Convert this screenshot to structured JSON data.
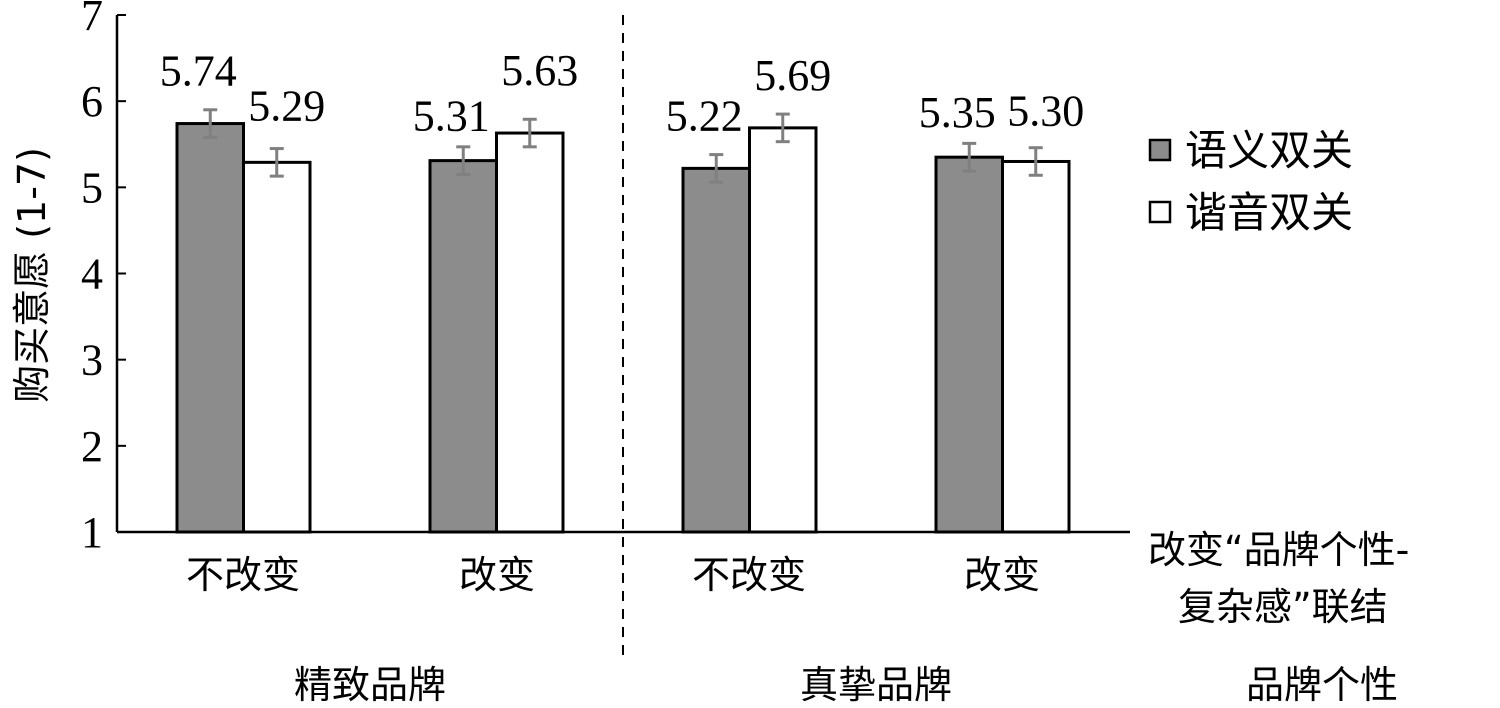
{
  "chart_data": {
    "type": "bar",
    "ylabel": "购买意愿 (1-7)",
    "ylim": [
      1,
      7
    ],
    "yticks": [
      "1",
      "2",
      "3",
      "4",
      "5",
      "6",
      "7"
    ],
    "grid": false,
    "legend_position": "right",
    "categories": [
      "不改变",
      "改变",
      "不改变",
      "改变"
    ],
    "groups": [
      {
        "label": "精致品牌",
        "categories": [
          0,
          1
        ]
      },
      {
        "label": "真挚品牌",
        "categories": [
          2,
          3
        ]
      }
    ],
    "x_factor_label_line1": "改变“品牌个性-",
    "x_factor_label_line2": "复杂感”联结",
    "group_factor_label": "品牌个性",
    "series": [
      {
        "name": "语义双关",
        "values": [
          5.74,
          5.31,
          5.22,
          5.35
        ],
        "labels": [
          "5.74",
          "5.31",
          "5.22",
          "5.35"
        ],
        "color": "#8c8c8c"
      },
      {
        "name": "谐音双关",
        "values": [
          5.29,
          5.63,
          5.69,
          5.3
        ],
        "labels": [
          "5.29",
          "5.63",
          "5.69",
          "5.30"
        ],
        "color": "#ffffff"
      }
    ],
    "error_bar_color": "#808080"
  }
}
